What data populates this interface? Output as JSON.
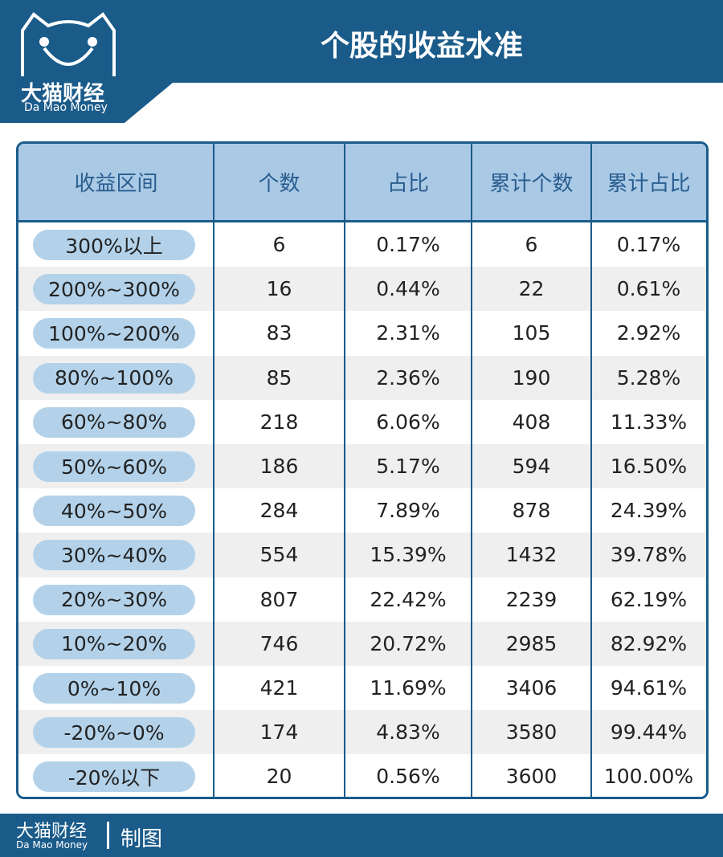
{
  "header": {
    "logo_cn": "大猫财经",
    "logo_en": "Da Mao Money",
    "title": "个股的收益水准"
  },
  "table": {
    "columns": [
      "收益区间",
      "个数",
      "占比",
      "累计个数",
      "累计占比"
    ],
    "rows": [
      [
        "300%以上",
        "6",
        "0.17%",
        "6",
        "0.17%"
      ],
      [
        "200%~300%",
        "16",
        "0.44%",
        "22",
        "0.61%"
      ],
      [
        "100%~200%",
        "83",
        "2.31%",
        "105",
        "2.92%"
      ],
      [
        "80%~100%",
        "85",
        "2.36%",
        "190",
        "5.28%"
      ],
      [
        "60%~80%",
        "218",
        "6.06%",
        "408",
        "11.33%"
      ],
      [
        "50%~60%",
        "186",
        "5.17%",
        "594",
        "16.50%"
      ],
      [
        "40%~50%",
        "284",
        "7.89%",
        "878",
        "24.39%"
      ],
      [
        "30%~40%",
        "554",
        "15.39%",
        "1432",
        "39.78%"
      ],
      [
        "20%~30%",
        "807",
        "22.42%",
        "2239",
        "62.19%"
      ],
      [
        "10%~20%",
        "746",
        "20.72%",
        "2985",
        "82.92%"
      ],
      [
        "0%~10%",
        "421",
        "11.69%",
        "3406",
        "94.61%"
      ],
      [
        "-20%~0%",
        "174",
        "4.83%",
        "3580",
        "99.44%"
      ],
      [
        "-20%以下",
        "20",
        "0.56%",
        "3600",
        "100.00%"
      ]
    ]
  },
  "footer": {
    "logo_cn": "大猫财经",
    "logo_en": "Da Mao Money",
    "credit": "制图"
  }
}
